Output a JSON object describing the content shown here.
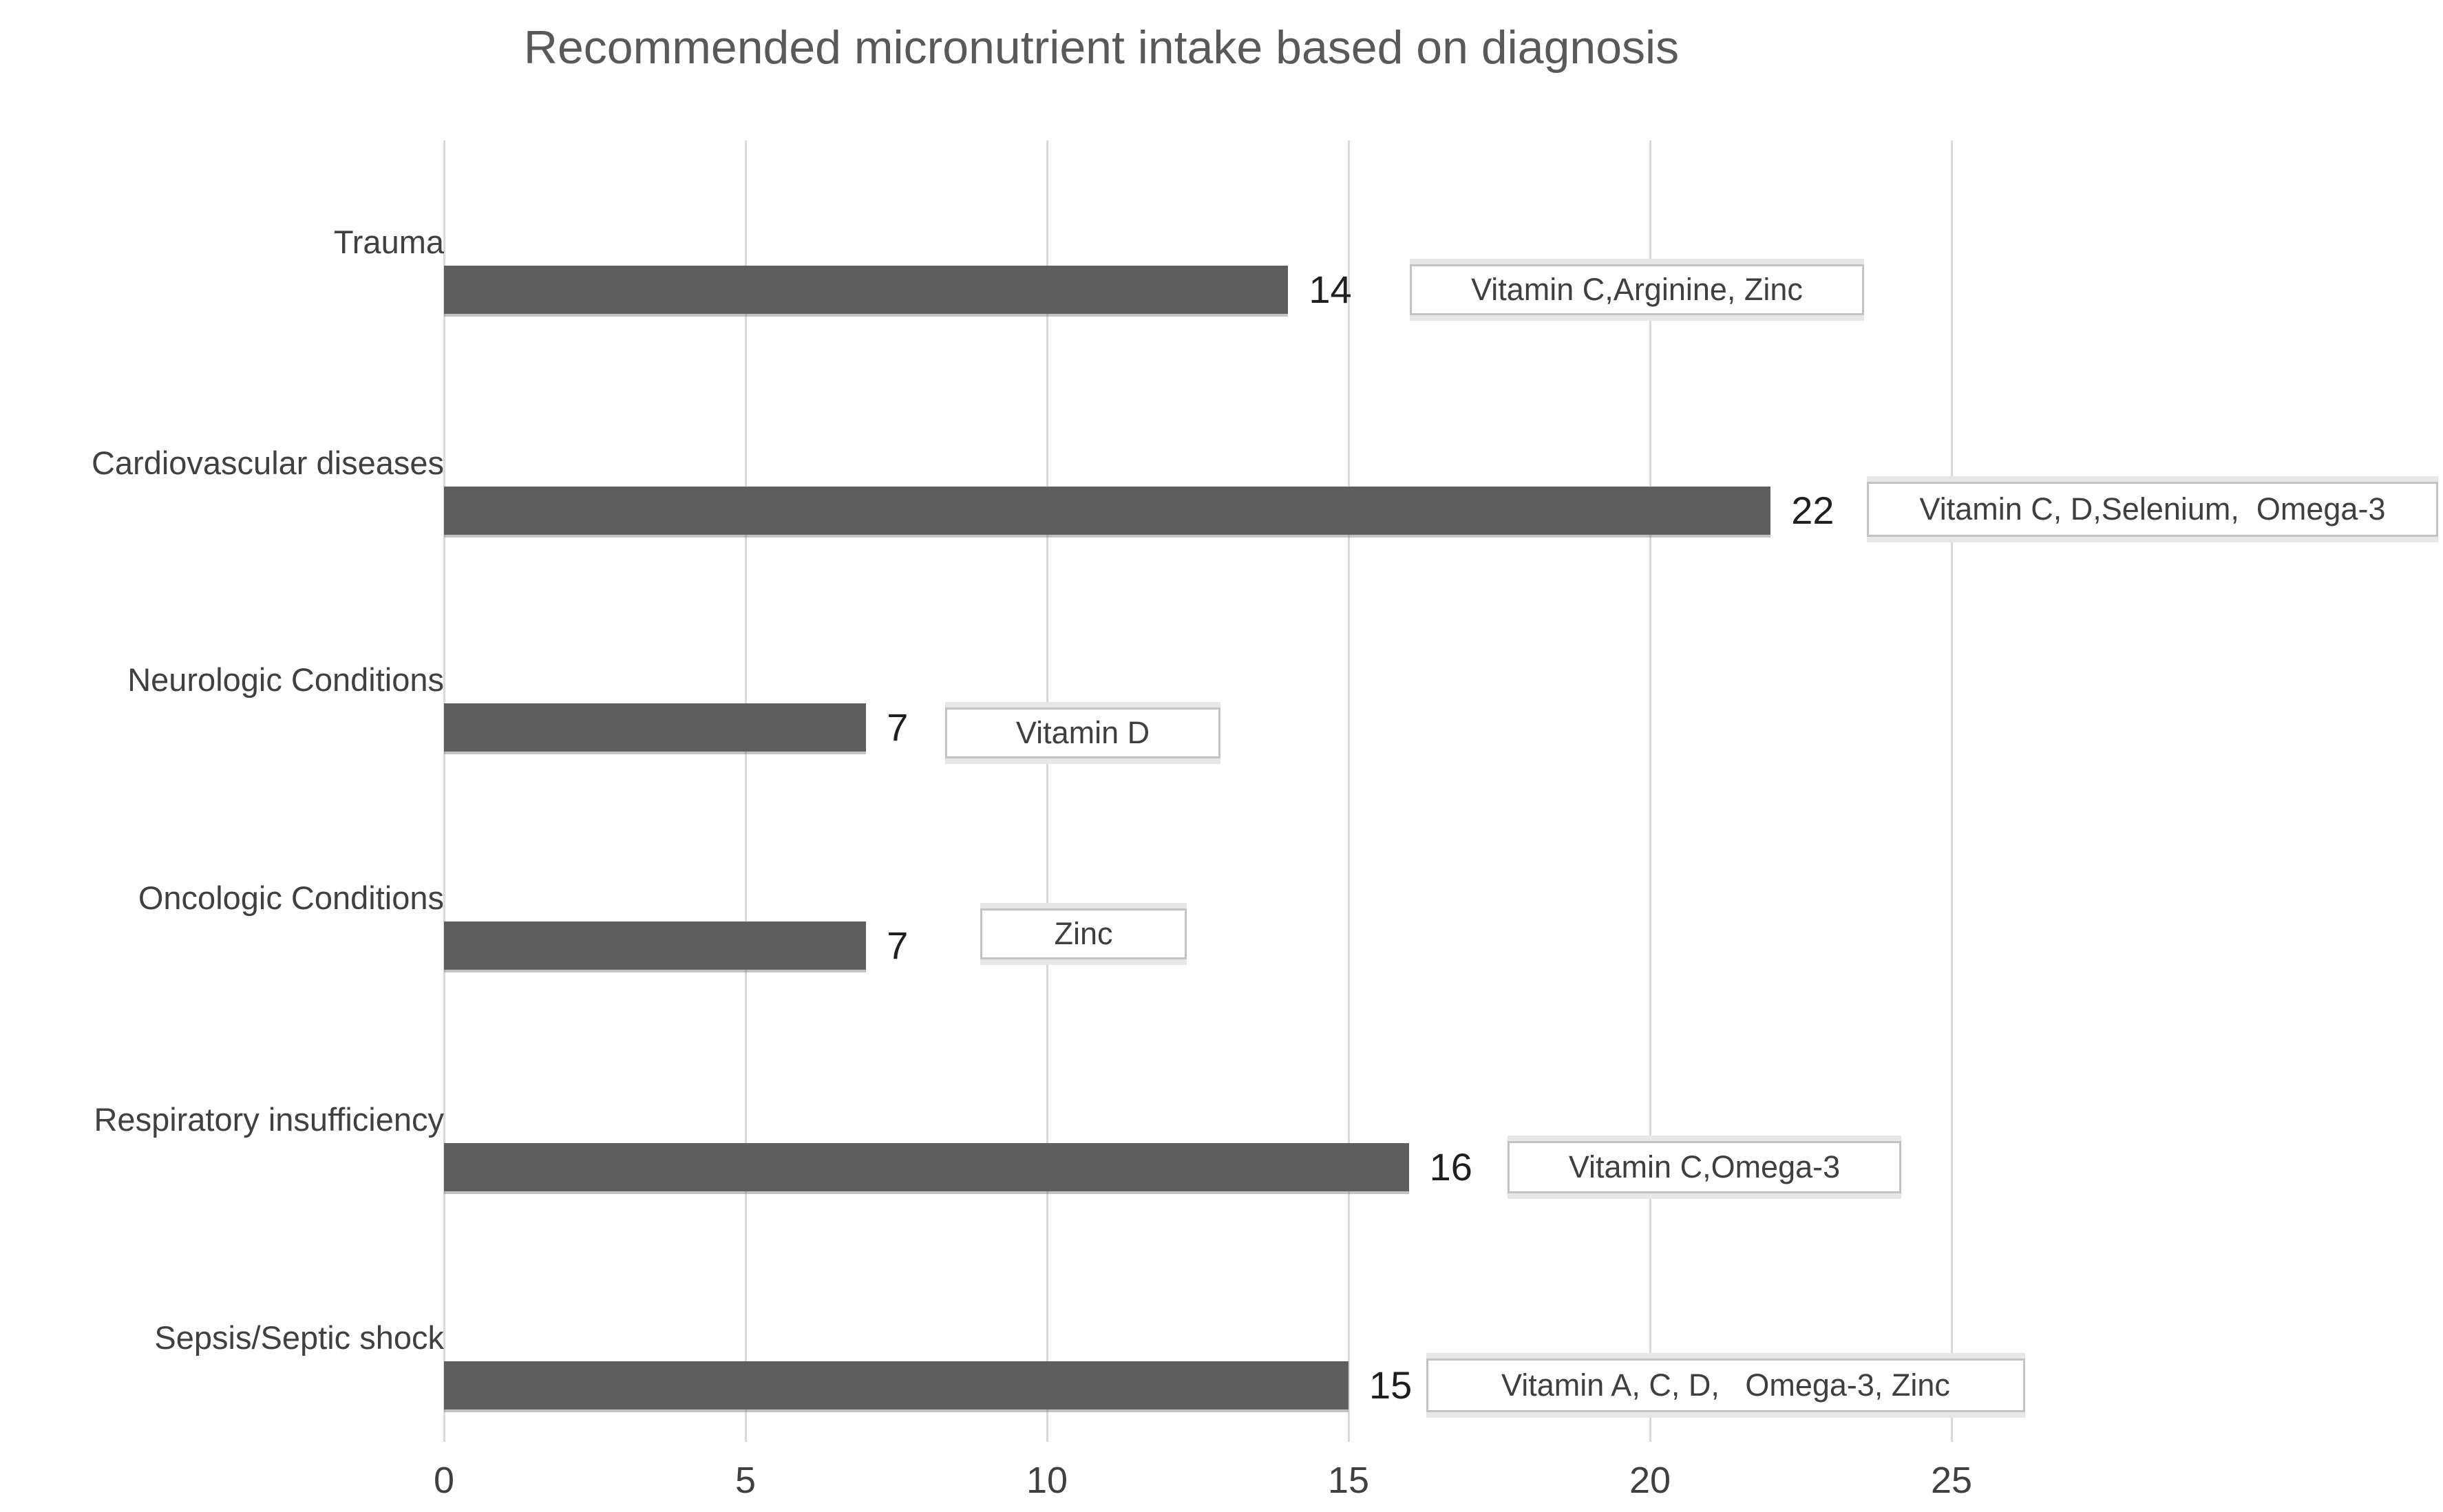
{
  "title": "Recommended micronutrient intake based on diagnosis",
  "chart_data": {
    "type": "bar",
    "orientation": "horizontal",
    "title": "Recommended micronutrient intake based on diagnosis",
    "categories": [
      "Trauma",
      "Cardiovascular diseases",
      "Neurologic Conditions",
      "Oncologic Conditions",
      "Respiratory insufficiency",
      "Sepsis/Septic shock"
    ],
    "values": [
      14,
      22,
      7,
      7,
      16,
      15
    ],
    "data_labels": [
      "14",
      "22",
      "7",
      "7",
      "16",
      "15"
    ],
    "annotations": [
      "Vitamin C,Arginine, Zinc",
      "Vitamin C, D,Selenium,  Omega-3",
      "Vitamin D",
      "Zinc",
      "Vitamin C,Omega-3",
      "Vitamin A, C, D,   Omega-3, Zinc"
    ],
    "x_ticks": [
      "0",
      "5",
      "10",
      "15",
      "20",
      "25"
    ],
    "xlim": [
      0,
      25
    ],
    "xlabel": "",
    "ylabel": "",
    "legend": "none",
    "grid": "vertical-only",
    "bar_color": "#5e5e5e",
    "gridline_color": "#d9d9d9",
    "title_color": "#595959"
  }
}
